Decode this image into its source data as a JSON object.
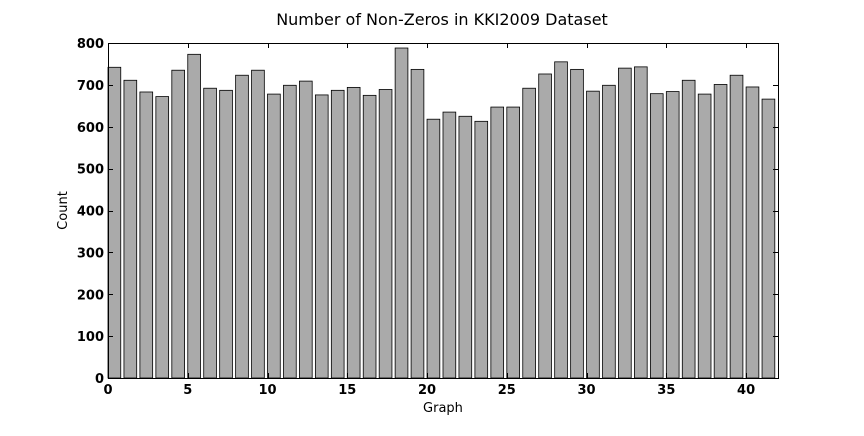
{
  "chart_data": {
    "type": "bar",
    "title": "Number of Non-Zeros in KKI2009 Dataset",
    "xlabel": "Graph",
    "ylabel": "Count",
    "x": [
      0,
      1,
      2,
      3,
      4,
      5,
      6,
      7,
      8,
      9,
      10,
      11,
      12,
      13,
      14,
      15,
      16,
      17,
      18,
      19,
      20,
      21,
      22,
      23,
      24,
      25,
      26,
      27,
      28,
      29,
      30,
      31,
      32,
      33,
      34,
      35,
      36,
      37,
      38,
      39,
      40,
      41
    ],
    "values": [
      742,
      711,
      683,
      672,
      735,
      773,
      692,
      687,
      723,
      735,
      678,
      699,
      709,
      676,
      687,
      694,
      675,
      689,
      788,
      737,
      618,
      635,
      625,
      613,
      647,
      647,
      692,
      726,
      755,
      737,
      685,
      699,
      740,
      743,
      679,
      684,
      711,
      678,
      701,
      723,
      695,
      666
    ],
    "xlim": [
      0,
      42
    ],
    "ylim": [
      0,
      800
    ],
    "xticks": [
      0,
      5,
      10,
      15,
      20,
      25,
      30,
      35,
      40
    ],
    "yticks": [
      0,
      100,
      200,
      300,
      400,
      500,
      600,
      700,
      800
    ],
    "grid": false,
    "bar_color": "#aaaaaa",
    "edge_color": "#000000"
  }
}
